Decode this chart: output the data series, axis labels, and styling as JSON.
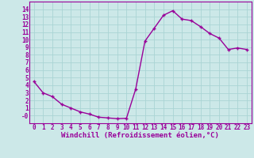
{
  "x": [
    0,
    1,
    2,
    3,
    4,
    5,
    6,
    7,
    8,
    9,
    10,
    11,
    12,
    13,
    14,
    15,
    16,
    17,
    18,
    19,
    20,
    21,
    22,
    23
  ],
  "y": [
    4.5,
    3.0,
    2.5,
    1.5,
    1.0,
    0.5,
    0.2,
    -0.2,
    -0.3,
    -0.4,
    -0.35,
    3.5,
    9.8,
    11.5,
    13.2,
    13.8,
    12.7,
    12.5,
    11.7,
    10.8,
    10.2,
    8.7,
    8.9,
    8.7
  ],
  "line_color": "#990099",
  "marker": "+",
  "marker_color": "#990099",
  "bg_color": "#cce8e8",
  "grid_color": "#aad4d4",
  "xlabel": "Windchill (Refroidissement éolien,°C)",
  "xlabel_color": "#990099",
  "tick_color": "#990099",
  "ylim": [
    -1,
    15
  ],
  "xlim": [
    -0.5,
    23.5
  ],
  "yticks": [
    0,
    1,
    2,
    3,
    4,
    5,
    6,
    7,
    8,
    9,
    10,
    11,
    12,
    13,
    14
  ],
  "ytick_labels": [
    "-0",
    "1",
    "2",
    "3",
    "4",
    "5",
    "6",
    "7",
    "8",
    "9",
    "10",
    "11",
    "12",
    "13",
    "14"
  ],
  "xticks": [
    0,
    1,
    2,
    3,
    4,
    5,
    6,
    7,
    8,
    9,
    10,
    11,
    12,
    13,
    14,
    15,
    16,
    17,
    18,
    19,
    20,
    21,
    22,
    23
  ],
  "spine_color": "#990099",
  "markersize": 3,
  "linewidth": 1.0,
  "tick_fontsize": 5.5,
  "xlabel_fontsize": 6.5
}
